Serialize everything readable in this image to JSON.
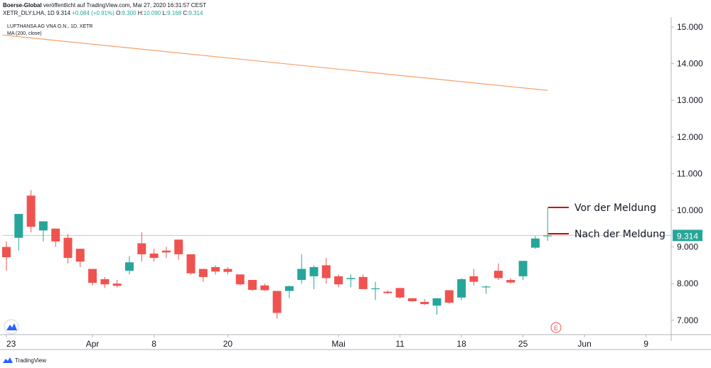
{
  "header": {
    "publisher": "Boerse-Global",
    "published_text": " veröffentlicht auf TradingView.com, Mai 27, 2020 16:31:57 CEST",
    "ohlc_prefix": "XETR_DLY:LHA, 1D  9.314  ",
    "change": "+0.084 (+0.91%)",
    "o_label": " O:",
    "o_value": "9.300",
    "h_label": " H:",
    "h_value": "10.090",
    "l_label": " L:",
    "l_value": "9.168",
    "c_label": " C:",
    "c_value": "9.314"
  },
  "legend": {
    "symbol_line": "LUFTHANSA AG VNA O.N., 1D, XETR",
    "ma_line": "MA (200, close)"
  },
  "footer": {
    "brand": "TradingView"
  },
  "colors": {
    "up": "#26a69a",
    "down": "#ef5350",
    "ma": "#f7a26a",
    "price_line": "#9fd8d2",
    "annotation": "#d50000"
  },
  "chart_data": {
    "type": "candlestick",
    "title": "LUFTHANSA AG VNA O.N., 1D, XETR",
    "ylim": [
      6.55,
      15.25
    ],
    "y_ticks": [
      "15.000",
      "14.000",
      "13.000",
      "12.000",
      "11.000",
      "10.000",
      "9.000",
      "8.000",
      "7.000"
    ],
    "x_ticks": [
      {
        "label": "23",
        "index": 0
      },
      {
        "label": "Apr",
        "index": 7
      },
      {
        "label": "8",
        "index": 12
      },
      {
        "label": "20",
        "index": 18
      },
      {
        "label": "Mai",
        "index": 27
      },
      {
        "label": "11",
        "index": 32
      },
      {
        "label": "18",
        "index": 37
      },
      {
        "label": "25",
        "index": 42
      },
      {
        "label": "Jun",
        "index": 47
      },
      {
        "label": "9",
        "index": 52
      }
    ],
    "candles": [
      {
        "o": 9.0,
        "h": 9.15,
        "l": 8.35,
        "c": 8.72
      },
      {
        "o": 9.25,
        "h": 9.9,
        "l": 8.9,
        "c": 9.9
      },
      {
        "o": 10.4,
        "h": 10.55,
        "l": 9.4,
        "c": 9.55
      },
      {
        "o": 9.45,
        "h": 9.7,
        "l": 9.15,
        "c": 9.7
      },
      {
        "o": 9.5,
        "h": 9.5,
        "l": 9.0,
        "c": 9.15
      },
      {
        "o": 9.25,
        "h": 9.35,
        "l": 8.55,
        "c": 8.7
      },
      {
        "o": 8.95,
        "h": 8.95,
        "l": 8.45,
        "c": 8.6
      },
      {
        "o": 8.4,
        "h": 8.4,
        "l": 7.95,
        "c": 8.02
      },
      {
        "o": 8.12,
        "h": 8.18,
        "l": 7.88,
        "c": 7.98
      },
      {
        "o": 8.0,
        "h": 8.1,
        "l": 7.9,
        "c": 7.94
      },
      {
        "o": 8.35,
        "h": 8.75,
        "l": 8.25,
        "c": 8.58
      },
      {
        "o": 9.1,
        "h": 9.4,
        "l": 8.6,
        "c": 8.8
      },
      {
        "o": 8.82,
        "h": 8.95,
        "l": 8.6,
        "c": 8.7
      },
      {
        "o": 8.9,
        "h": 9.0,
        "l": 8.7,
        "c": 8.85
      },
      {
        "o": 9.2,
        "h": 9.2,
        "l": 8.65,
        "c": 8.8
      },
      {
        "o": 8.8,
        "h": 8.8,
        "l": 8.25,
        "c": 8.28
      },
      {
        "o": 8.4,
        "h": 8.4,
        "l": 8.05,
        "c": 8.18
      },
      {
        "o": 8.45,
        "h": 8.5,
        "l": 8.25,
        "c": 8.33
      },
      {
        "o": 8.4,
        "h": 8.45,
        "l": 8.25,
        "c": 8.32
      },
      {
        "o": 8.25,
        "h": 8.25,
        "l": 7.95,
        "c": 7.98
      },
      {
        "o": 8.1,
        "h": 8.1,
        "l": 7.8,
        "c": 7.83
      },
      {
        "o": 7.95,
        "h": 8.0,
        "l": 7.8,
        "c": 7.82
      },
      {
        "o": 7.8,
        "h": 7.8,
        "l": 7.05,
        "c": 7.2
      },
      {
        "o": 7.8,
        "h": 7.95,
        "l": 7.6,
        "c": 7.93
      },
      {
        "o": 8.1,
        "h": 8.8,
        "l": 8.0,
        "c": 8.4
      },
      {
        "o": 8.2,
        "h": 8.5,
        "l": 7.85,
        "c": 8.45
      },
      {
        "o": 8.5,
        "h": 8.7,
        "l": 8.0,
        "c": 8.15
      },
      {
        "o": 8.2,
        "h": 8.25,
        "l": 7.9,
        "c": 7.98
      },
      {
        "o": 8.12,
        "h": 8.25,
        "l": 7.9,
        "c": 8.15
      },
      {
        "o": 8.18,
        "h": 8.25,
        "l": 7.88,
        "c": 7.85
      },
      {
        "o": 7.85,
        "h": 8.05,
        "l": 7.55,
        "c": 7.87
      },
      {
        "o": 7.78,
        "h": 7.82,
        "l": 7.72,
        "c": 7.74
      },
      {
        "o": 7.88,
        "h": 7.88,
        "l": 7.6,
        "c": 7.62
      },
      {
        "o": 7.6,
        "h": 7.6,
        "l": 7.5,
        "c": 7.52
      },
      {
        "o": 7.5,
        "h": 7.58,
        "l": 7.42,
        "c": 7.44
      },
      {
        "o": 7.4,
        "h": 7.6,
        "l": 7.15,
        "c": 7.6
      },
      {
        "o": 7.82,
        "h": 7.82,
        "l": 7.45,
        "c": 7.48
      },
      {
        "o": 7.62,
        "h": 8.15,
        "l": 7.55,
        "c": 8.12
      },
      {
        "o": 8.2,
        "h": 8.4,
        "l": 7.95,
        "c": 8.05
      },
      {
        "o": 7.9,
        "h": 7.95,
        "l": 7.72,
        "c": 7.92
      },
      {
        "o": 8.35,
        "h": 8.55,
        "l": 8.1,
        "c": 8.15
      },
      {
        "o": 8.1,
        "h": 8.15,
        "l": 8.0,
        "c": 8.03
      },
      {
        "o": 8.2,
        "h": 8.62,
        "l": 8.1,
        "c": 8.62
      },
      {
        "o": 8.98,
        "h": 9.3,
        "l": 8.95,
        "c": 9.23
      },
      {
        "o": 9.3,
        "h": 10.09,
        "l": 9.17,
        "c": 9.314
      }
    ],
    "ma200": {
      "label": "MA (200, close)",
      "start": 14.78,
      "end": 13.27
    },
    "last_price": {
      "label": "9.314",
      "value": 9.314
    },
    "annotations": [
      {
        "text": "Vor der Meldung",
        "value": 10.09
      },
      {
        "text": "Nach der Meldung",
        "value": 9.314
      }
    ],
    "event_marker": "E"
  }
}
